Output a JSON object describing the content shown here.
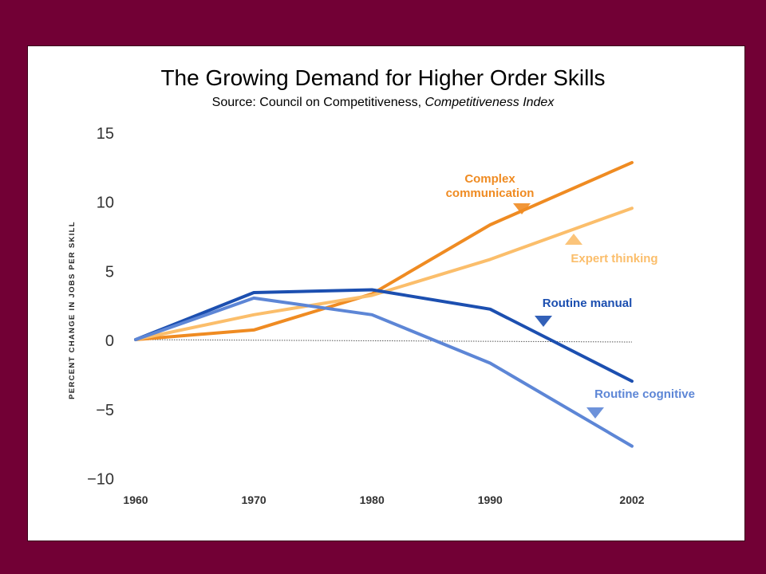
{
  "slide": {
    "title": "The Growing Demand for Higher Order Skills",
    "subtitle_prefix": "Source: Council on Competitiveness, ",
    "subtitle_italic": "Competitiveness Index",
    "background": "#720035"
  },
  "chart_data": {
    "type": "line",
    "title": "The Growing Demand for Higher Order Skills",
    "subtitle": "Source: Council on Competitiveness, Competitiveness Index",
    "xlabel": "",
    "ylabel": "PERCENT CHANGE IN JOBS PER SKILL",
    "x": [
      1960,
      1970,
      1980,
      1990,
      2002
    ],
    "x_tick_labels": [
      "1960",
      "1970",
      "1980",
      "1990",
      "2002"
    ],
    "y_ticks": [
      15,
      10,
      5,
      0,
      -5,
      -10
    ],
    "y_tick_labels": [
      "15",
      "10",
      "5",
      "0",
      "−5",
      "−10"
    ],
    "ylim": [
      -10,
      15
    ],
    "xlim": [
      1960,
      2002
    ],
    "baseline": 0,
    "grid": false,
    "legend": "inline labels",
    "series": [
      {
        "name": "Complex communication",
        "label_lines": [
          "Complex",
          "communication"
        ],
        "color": "#ef8b22",
        "marker": "down",
        "values": [
          0.0,
          0.7,
          3.3,
          8.3,
          12.8
        ]
      },
      {
        "name": "Expert thinking",
        "label_lines": [
          "Expert thinking"
        ],
        "color": "#fbbe6b",
        "marker": "up",
        "values": [
          0.0,
          1.8,
          3.2,
          5.8,
          9.5
        ]
      },
      {
        "name": "Routine manual",
        "label_lines": [
          "Routine manual"
        ],
        "color": "#1c4fb0",
        "marker": "down",
        "values": [
          0.0,
          3.4,
          3.6,
          2.2,
          -3.0
        ]
      },
      {
        "name": "Routine cognitive",
        "label_lines": [
          "Routine cognitive"
        ],
        "color": "#5d86d6",
        "marker": "down",
        "values": [
          0.0,
          3.0,
          1.8,
          -1.7,
          -7.7
        ]
      }
    ]
  }
}
